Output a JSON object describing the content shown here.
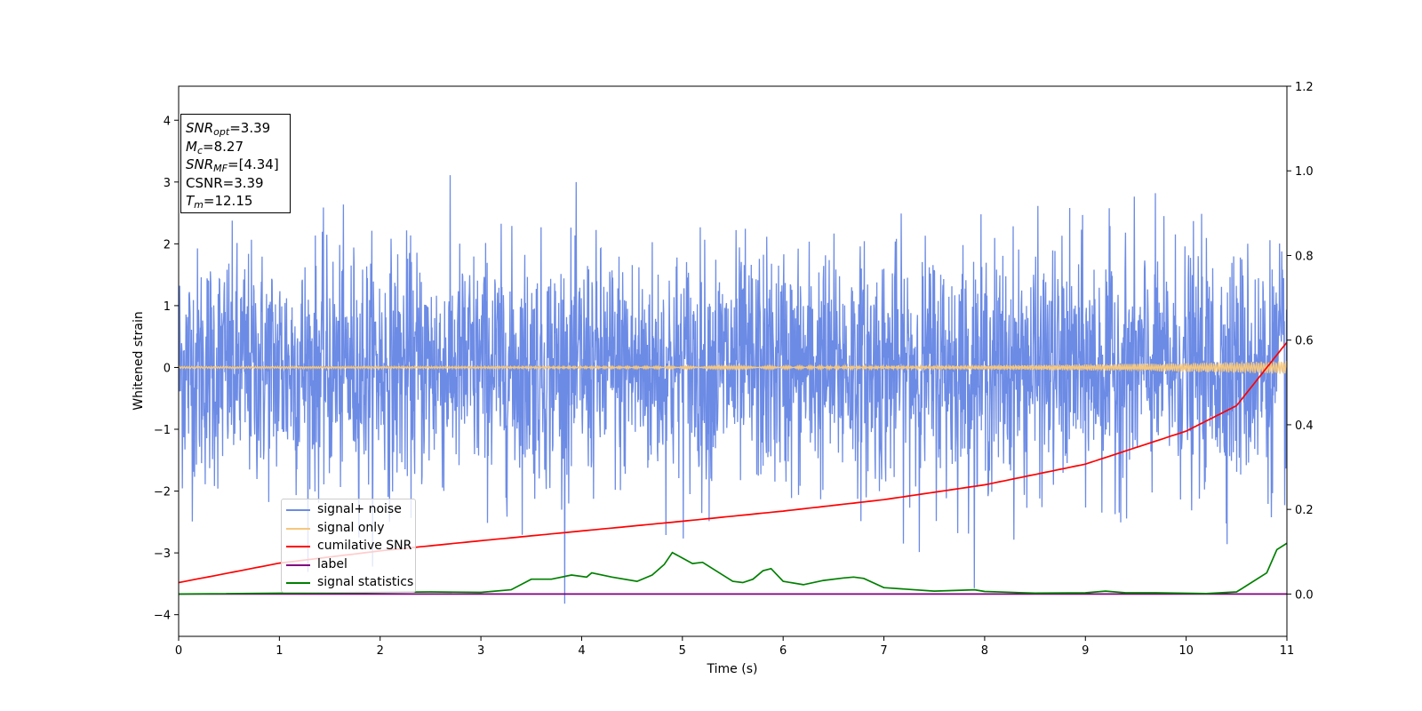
{
  "chart_data": {
    "type": "line",
    "xlabel": "Time (s)",
    "ylabel": "Whitened strain",
    "xlim": [
      0,
      11
    ],
    "ylim": [
      -4.35,
      4.55
    ],
    "y2lim": [
      -0.1,
      1.2
    ],
    "x_ticks": [
      "0",
      "1",
      "2",
      "3",
      "4",
      "5",
      "6",
      "7",
      "8",
      "9",
      "10",
      "11"
    ],
    "y_ticks": [
      "−4",
      "−3",
      "−2",
      "−1",
      "0",
      "1",
      "2",
      "3",
      "4"
    ],
    "y2_ticks": [
      "0.0",
      "0.2",
      "0.4",
      "0.6",
      "0.8",
      "1.0",
      "1.2"
    ],
    "annotation": {
      "snr_opt": "=3.39",
      "mc": "=8.27",
      "snr_mf": "=[4.34]",
      "csnr": "CSNR=3.39",
      "tm": "=12.15"
    },
    "series": [
      {
        "name": "signal+ noise",
        "axis": "left",
        "color": "#6c8be5",
        "description": "noisy whitened strain, roughly Gaussian with std ~1, spikes up to ~3.5 and down to ~-3.9"
      },
      {
        "name": "signal only",
        "axis": "left",
        "color": "#f5c77e",
        "description": "chirp signal near 0 with amplitude growing to ~0.1 at t=11"
      },
      {
        "name": "cumilative SNR",
        "axis": "right",
        "color": "#ff0000",
        "x": [
          0,
          1,
          2,
          3,
          4,
          5,
          6,
          7,
          8,
          9,
          10,
          10.5,
          11
        ],
        "values": [
          0.027,
          0.073,
          0.102,
          0.126,
          0.149,
          0.172,
          0.196,
          0.223,
          0.258,
          0.307,
          0.385,
          0.445,
          0.595
        ]
      },
      {
        "name": "label",
        "axis": "right",
        "color": "#800080",
        "x": [
          0,
          11
        ],
        "values": [
          0.0,
          0.0
        ]
      },
      {
        "name": "signal statistics",
        "axis": "right",
        "color": "#008000",
        "x": [
          0,
          2.5,
          3.0,
          3.3,
          3.5,
          3.7,
          3.9,
          4.05,
          4.1,
          4.3,
          4.55,
          4.7,
          4.82,
          4.9,
          5.0,
          5.1,
          5.2,
          5.3,
          5.5,
          5.6,
          5.7,
          5.8,
          5.88,
          6.0,
          6.2,
          6.4,
          6.6,
          6.7,
          6.8,
          7.0,
          7.5,
          7.9,
          8.0,
          8.5,
          9.0,
          9.2,
          9.4,
          9.7,
          10.2,
          10.5,
          10.6,
          10.8,
          10.9,
          11.0
        ],
        "values": [
          0.0,
          0.005,
          0.004,
          0.01,
          0.035,
          0.035,
          0.045,
          0.04,
          0.05,
          0.04,
          0.03,
          0.045,
          0.07,
          0.098,
          0.085,
          0.072,
          0.075,
          0.06,
          0.03,
          0.027,
          0.035,
          0.055,
          0.06,
          0.03,
          0.022,
          0.032,
          0.038,
          0.04,
          0.037,
          0.015,
          0.007,
          0.01,
          0.006,
          0.002,
          0.003,
          0.007,
          0.003,
          0.003,
          0.001,
          0.005,
          0.02,
          0.05,
          0.105,
          0.12
        ]
      }
    ]
  }
}
